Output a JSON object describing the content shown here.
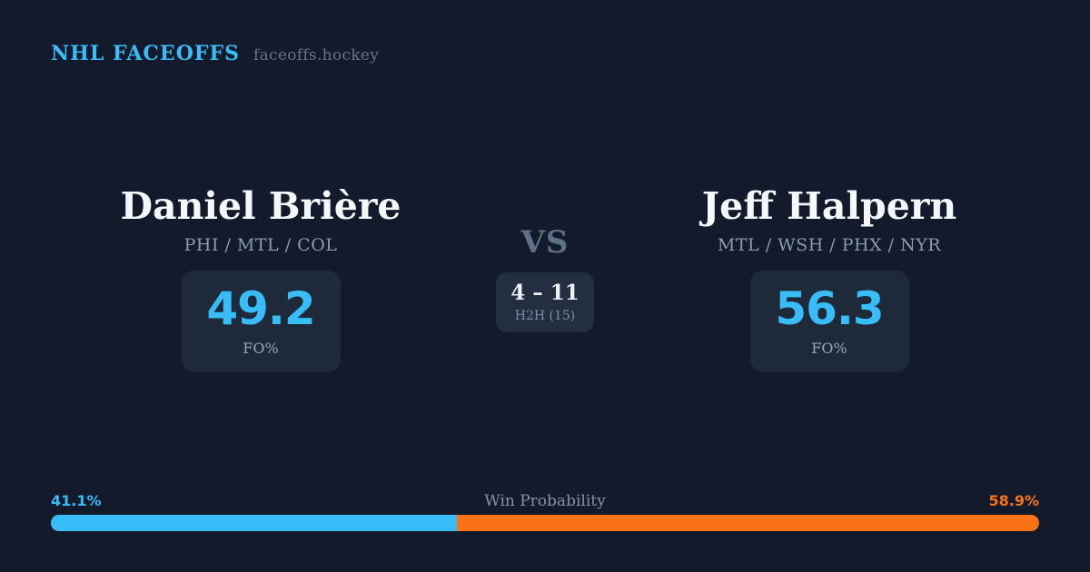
{
  "brand": {
    "title": "NHL FACEOFFS",
    "domain": "faceoffs.hockey"
  },
  "players": {
    "left": {
      "name": "Daniel Brière",
      "teams": "PHI / MTL / COL",
      "stat_value": "49.2",
      "stat_label": "FO%"
    },
    "right": {
      "name": "Jeff Halpern",
      "teams": "MTL / WSH / PHX / NYR",
      "stat_value": "56.3",
      "stat_label": "FO%"
    }
  },
  "center": {
    "vs_label": "VS",
    "h2h_record": "4 – 11",
    "h2h_label": "H2H (15)"
  },
  "win_probability": {
    "label": "Win Probability",
    "left_pct_label": "41.1%",
    "right_pct_label": "58.9%",
    "left_value": 41.1,
    "right_value": 58.9
  },
  "colors": {
    "background": "#121a2b",
    "panel": "#1e2a39",
    "h2h_panel": "#232f41",
    "accent_blue": "#38bdf8",
    "accent_orange": "#f97316",
    "name_text": "#f4f7fb",
    "teams_text": "#8a9ab2",
    "vs_text": "#5f7089"
  }
}
